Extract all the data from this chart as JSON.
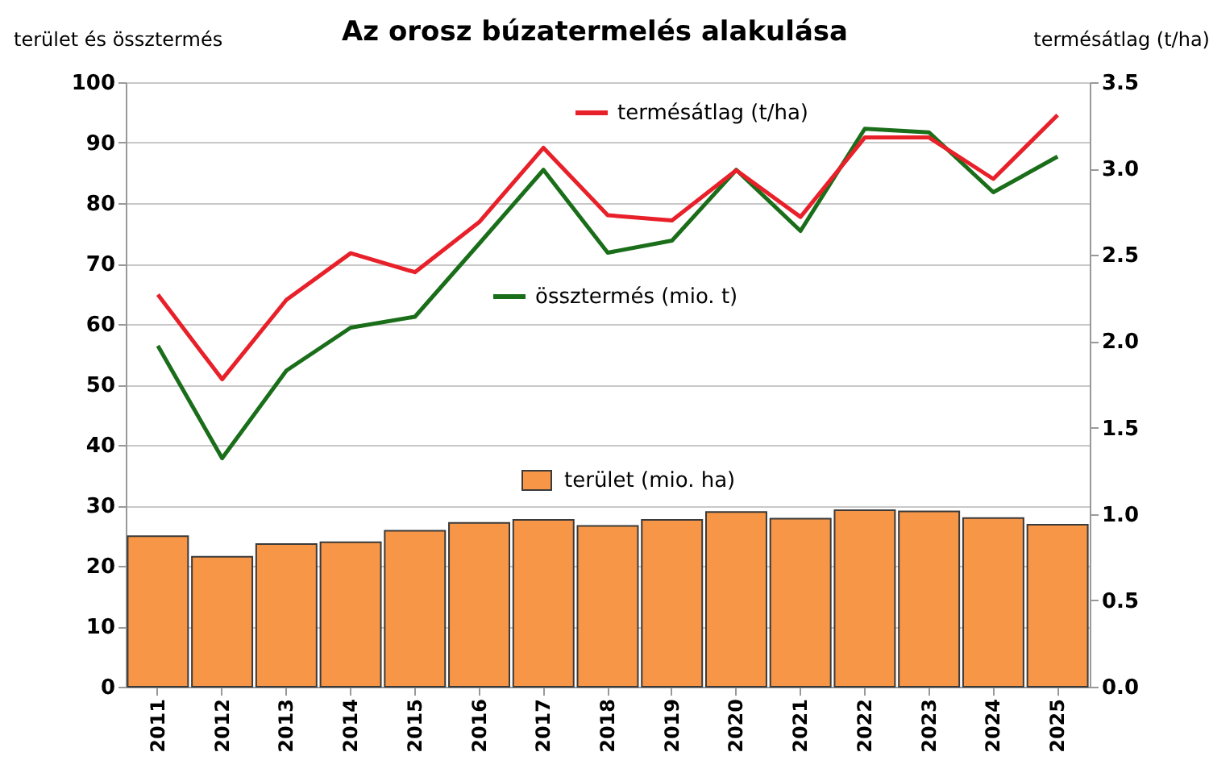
{
  "chart_data": {
    "type": "bar",
    "title": "Az orosz búzatermelés alakulása",
    "ylabel": "terület és össztermés",
    "y2label": "termésátlag (t/ha)",
    "categories": [
      "2011",
      "2012",
      "2013",
      "2014",
      "2015",
      "2016",
      "2017",
      "2018",
      "2019",
      "2020",
      "2021",
      "2022",
      "2023",
      "2024",
      "2025"
    ],
    "series": [
      {
        "name": "terület (mio. ha)",
        "color": "#f79646",
        "values": [
          24.9,
          21.5,
          23.6,
          23.9,
          25.8,
          27.1,
          27.6,
          26.6,
          27.6,
          28.9,
          27.8,
          29.2,
          29.0,
          27.9,
          26.8
        ]
      },
      {
        "name": "össztermés (mio. t)",
        "type": "line",
        "color": "#1a6e1a",
        "values": [
          56.4,
          37.8,
          52.3,
          59.4,
          61.2,
          73.3,
          85.5,
          71.8,
          73.8,
          85.5,
          75.4,
          92.3,
          91.7,
          81.8,
          87.7
        ]
      },
      {
        "name": "termésátlag (t/ha)",
        "type": "line",
        "axis": "y2",
        "color": "#e8202a",
        "values": [
          2.27,
          1.78,
          2.24,
          2.51,
          2.4,
          2.69,
          3.12,
          2.73,
          2.7,
          2.99,
          2.72,
          3.18,
          3.18,
          2.94,
          3.31
        ]
      }
    ],
    "ylim": [
      0,
      100
    ],
    "yticks": [
      0,
      10,
      20,
      30,
      40,
      50,
      60,
      70,
      80,
      90,
      100
    ],
    "y2lim": [
      0,
      3.5
    ],
    "y2ticks": [
      {
        "value": 0,
        "label": "0.0"
      },
      {
        "value": 0.5,
        "label": "0.5"
      },
      {
        "value": 1,
        "label": "1.0"
      },
      {
        "value": 1.5,
        "label": "1.5"
      },
      {
        "value": 2,
        "label": "2.0"
      },
      {
        "value": 2.5,
        "label": "2.5"
      },
      {
        "value": 3,
        "label": "3.0"
      },
      {
        "value": 3.5,
        "label": "3.5"
      }
    ],
    "grid": "y",
    "legend": "top",
    "marker": "none",
    "line_style": "solid"
  }
}
